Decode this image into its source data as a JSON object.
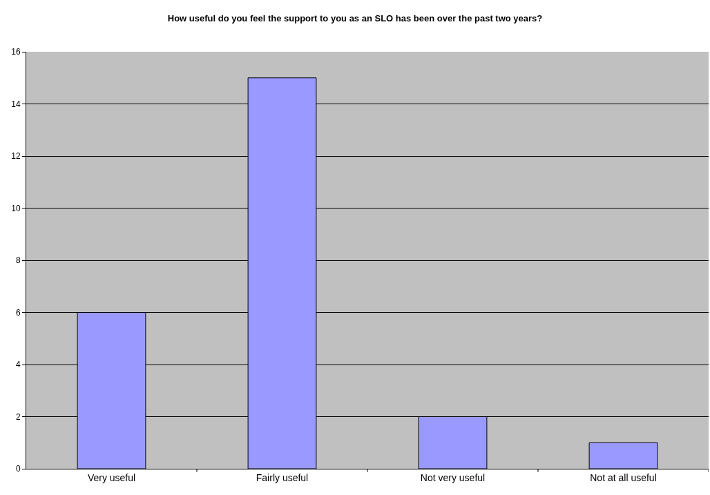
{
  "chart_data": {
    "type": "bar",
    "title": "How useful do you feel the support to you as an SLO has been over the past two years?",
    "categories": [
      "Very useful",
      "Fairly useful",
      "Not very useful",
      "Not at all useful"
    ],
    "values": [
      6,
      15,
      2,
      1
    ],
    "color": "#9999ff",
    "ylim": [
      0,
      16
    ],
    "yticks": [
      0,
      2,
      4,
      6,
      8,
      10,
      12,
      14,
      16
    ],
    "grid": "y"
  }
}
